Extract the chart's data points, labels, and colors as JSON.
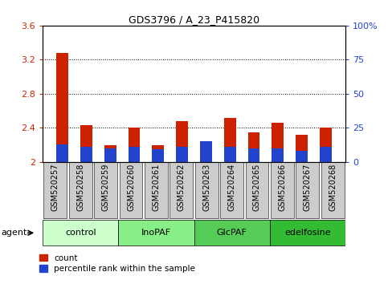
{
  "title": "GDS3796 / A_23_P415820",
  "categories": [
    "GSM520257",
    "GSM520258",
    "GSM520259",
    "GSM520260",
    "GSM520261",
    "GSM520262",
    "GSM520263",
    "GSM520264",
    "GSM520265",
    "GSM520266",
    "GSM520267",
    "GSM520268"
  ],
  "red_values": [
    3.28,
    2.43,
    2.2,
    2.4,
    2.2,
    2.48,
    2.17,
    2.52,
    2.35,
    2.46,
    2.32,
    2.4
  ],
  "blue_values_pct": [
    13,
    11,
    10,
    11,
    9,
    11,
    15,
    11,
    10,
    10,
    8,
    11
  ],
  "ylim_left": [
    2.0,
    3.6
  ],
  "ylim_right": [
    0,
    100
  ],
  "yticks_left": [
    2.0,
    2.4,
    2.8,
    3.2,
    3.6
  ],
  "yticks_right": [
    0,
    25,
    50,
    75,
    100
  ],
  "ytick_labels_left": [
    "2",
    "2.4",
    "2.8",
    "3.2",
    "3.6"
  ],
  "ytick_labels_right": [
    "0",
    "25",
    "50",
    "75",
    "100%"
  ],
  "groups": [
    {
      "label": "control",
      "start": 0,
      "end": 2,
      "color": "#ccffcc"
    },
    {
      "label": "InoPAF",
      "start": 3,
      "end": 5,
      "color": "#88ee88"
    },
    {
      "label": "GlcPAF",
      "start": 6,
      "end": 8,
      "color": "#55cc55"
    },
    {
      "label": "edelfosine",
      "start": 9,
      "end": 11,
      "color": "#33bb33"
    }
  ],
  "red_color": "#cc2200",
  "blue_color": "#2244cc",
  "bar_width": 0.5,
  "bar_base": 2.0,
  "xtick_bg_color": "#cccccc",
  "legend_count_label": "count",
  "legend_pct_label": "percentile rank within the sample",
  "agent_label": "agent"
}
